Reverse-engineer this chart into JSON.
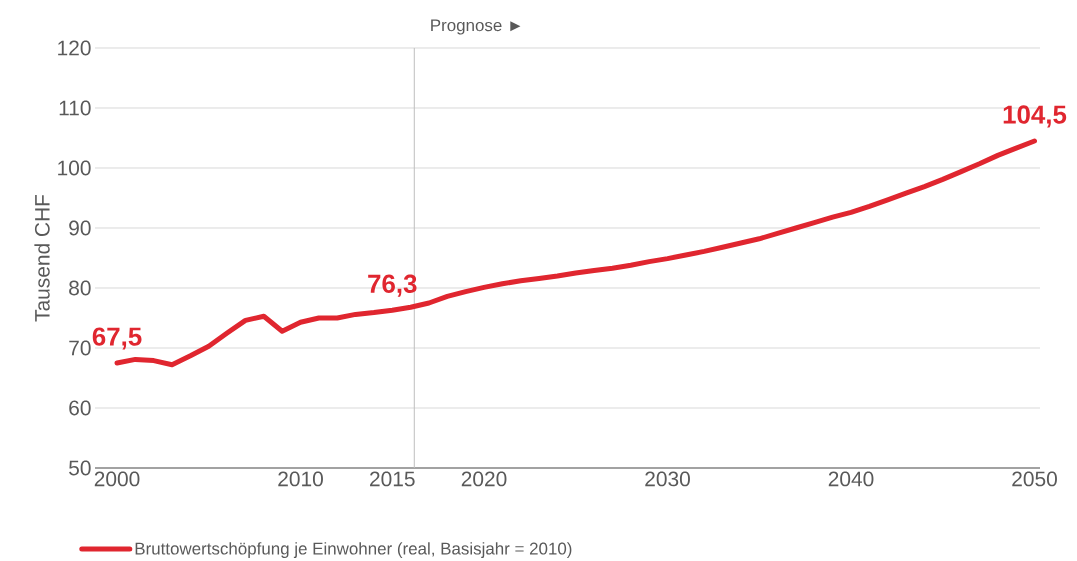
{
  "chart_data": {
    "type": "line",
    "ylabel": "Tausend CHF",
    "x": [
      2000,
      2001,
      2002,
      2003,
      2004,
      2005,
      2006,
      2007,
      2008,
      2009,
      2010,
      2011,
      2012,
      2013,
      2014,
      2015,
      2016,
      2017,
      2018,
      2019,
      2020,
      2021,
      2022,
      2023,
      2024,
      2025,
      2026,
      2027,
      2028,
      2029,
      2030,
      2031,
      2032,
      2033,
      2034,
      2035,
      2036,
      2037,
      2038,
      2039,
      2040,
      2041,
      2042,
      2043,
      2044,
      2045,
      2046,
      2047,
      2048,
      2049,
      2050
    ],
    "series": [
      {
        "name": "Bruttowertschöpfung je Einwohner (real, Basisjahr = 2010)",
        "color": "#e0262f",
        "values": [
          67.5,
          68.1,
          67.9,
          67.2,
          68.7,
          70.3,
          72.5,
          74.6,
          75.3,
          72.8,
          74.3,
          75.0,
          75.0,
          75.6,
          75.9,
          76.3,
          76.8,
          77.5,
          78.6,
          79.4,
          80.1,
          80.7,
          81.2,
          81.6,
          82.0,
          82.5,
          82.9,
          83.3,
          83.8,
          84.4,
          84.9,
          85.5,
          86.1,
          86.8,
          87.5,
          88.2,
          89.1,
          90.0,
          90.9,
          91.8,
          92.6,
          93.6,
          94.7,
          95.8,
          96.9,
          98.1,
          99.4,
          100.7,
          102.1,
          103.3,
          104.5
        ]
      }
    ],
    "xlim": [
      1998.8,
      2050.3
    ],
    "ylim": [
      50,
      120
    ],
    "xticks": [
      2000,
      2010,
      2015,
      2020,
      2030,
      2040,
      2050
    ],
    "yticks": [
      50,
      60,
      70,
      80,
      90,
      100,
      110,
      120
    ],
    "grid": "y",
    "legend": "bottom",
    "ref_lines": [
      {
        "axis": "x",
        "value": 2016.2,
        "label": "Prognose ►",
        "color": "#bfbfbf"
      }
    ],
    "annotations": [
      {
        "text": "67,5",
        "x": 2000,
        "y": 67.5
      },
      {
        "text": "76,3",
        "x": 2015,
        "y": 76.3
      },
      {
        "text": "104,5",
        "x": 2050,
        "y": 104.5
      }
    ]
  }
}
